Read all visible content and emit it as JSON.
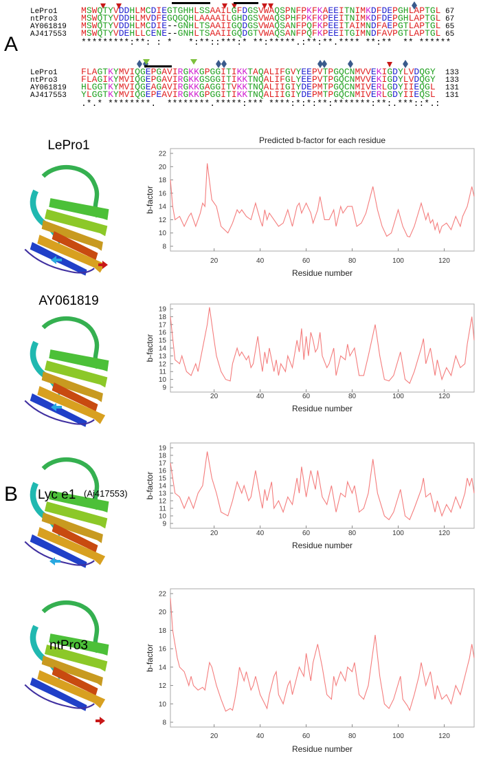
{
  "figure": {
    "panel_labels": [
      "A",
      "B"
    ]
  },
  "alignment": {
    "blocks": [
      {
        "rows": [
          {
            "name": "LePro1",
            "seq": "MSWQTYVDDHLMCDIEGTGHHLSSAAILGFDGSVWAQSPNFPKFKAEEITNIMKDFDEPGHLAPTGL",
            "end": 67
          },
          {
            "name": "ntPro3",
            "seq": "MSWQTYVDDHLMVDFEGQGQHLAAAAILGHDGSVWAQSPHFPKFKPEEITNIMKDFDEPGHLAPTGL",
            "end": 67
          },
          {
            "name": "AY061819",
            "seq": "MSWQTYVDDHLMCDIE--GNHLTSAAIIGQDGSVWAQSANFPQFKPEEITAIMNDFAEPGTLAPTGL",
            "end": 65
          },
          {
            "name": "AJ417553",
            "seq": "MSWQTYVDEHLLCENE--GNHLTSAAIIGQDGTVWAQSANFPQFKPEEITGIMNDFAVPGTLAPTGL",
            "end": 65
          }
        ],
        "consensus": "*********:**: : *   *:**::***:* **:*****.:**:**.**** **:**  ** ******"
      },
      {
        "rows": [
          {
            "name": "LePro1",
            "seq": "FLAGTKYMVIQGEPGAVIRGKKGPGGITIKKTAQALIFGVYEEPVTPGQCNMVVEKIGDYLVDQGY",
            "end": 133
          },
          {
            "name": "ntPro3",
            "seq": "FLAGIKYMVIQGEPGAVIRGKKGSGGITIKKTNQALIFGLYEEPVTPGQCNMVVEKIGDYLVDQGY",
            "end": 133
          },
          {
            "name": "AY061819",
            "seq": "HLGGTKYMVIQGEAGAVIRGKKGAGGITVKKTNQALIIGIYDEPMTPGQCNMIVERLGDYIIEQGL",
            "end": 131
          },
          {
            "name": "AJ417553",
            "seq": "YLGGTKYMVIQGEPEAVIRGKKGPGGITIKKTNQALIIGIYDEPMTPGQCNMIVERLGDYIIEQSL",
            "end": 131
          }
        ],
        "consensus": ".*.* ********.  ********.*****:*** ****:*:*:**:*******:**:.***::*.:"
      }
    ]
  },
  "structures": [
    {
      "label": "LePro1"
    },
    {
      "label": "AY061819"
    },
    {
      "label": "Lyc e1",
      "note": "(Aj417553)"
    },
    {
      "label": "ntPro3"
    }
  ],
  "chart_data": [
    {
      "type": "line",
      "title": "Predicted b-factor for each residue",
      "x_label": "Residue number",
      "y_label": "b-factor",
      "color": "#f47c7c",
      "xlim": [
        1,
        133
      ],
      "xticks": [
        20,
        40,
        60,
        80,
        100,
        120
      ],
      "ylim": [
        8,
        22
      ],
      "yticks": [
        8,
        10,
        12,
        14,
        16,
        18,
        20,
        22
      ],
      "x": [
        1,
        2,
        3,
        5,
        7,
        9,
        10,
        12,
        14,
        15,
        16,
        17,
        19,
        21,
        23,
        26,
        28,
        30,
        31,
        32,
        34,
        36,
        38,
        40,
        41,
        42,
        43,
        44,
        46,
        48,
        50,
        52,
        54,
        56,
        57,
        58,
        60,
        62,
        63,
        65,
        66,
        68,
        70,
        72,
        73,
        75,
        76,
        78,
        80,
        82,
        84,
        86,
        89,
        91,
        93,
        95,
        97,
        100,
        102,
        104,
        105,
        107,
        110,
        112,
        113,
        114,
        115,
        116,
        117,
        118,
        119,
        121,
        123,
        125,
        127,
        128,
        130,
        132,
        133
      ],
      "values": [
        18,
        14,
        12,
        12.5,
        11,
        12.5,
        13,
        11,
        13,
        14.5,
        14,
        20.5,
        15,
        14,
        11,
        10,
        11.5,
        13.5,
        13,
        13.5,
        12.5,
        12,
        14.5,
        12,
        11,
        13.5,
        12,
        13,
        12,
        11,
        11.5,
        13.5,
        11,
        14,
        14.5,
        13,
        14.5,
        13,
        11.5,
        13.5,
        15.5,
        12,
        12,
        13.5,
        11,
        14,
        13,
        14,
        14,
        11,
        11.5,
        13,
        17,
        13.5,
        11,
        9.5,
        10,
        13.5,
        11,
        9.5,
        9.4,
        11,
        14.5,
        12,
        13,
        11.5,
        12,
        10.5,
        11.5,
        10,
        11,
        11.5,
        10.5,
        12.5,
        11,
        12.5,
        14,
        17,
        15.5
      ]
    },
    {
      "type": "line",
      "x_label": "Residue number",
      "y_label": "b-factor",
      "color": "#f47c7c",
      "xlim": [
        1,
        133
      ],
      "xticks": [
        20,
        40,
        60,
        80,
        100,
        120
      ],
      "ylim": [
        9,
        19
      ],
      "yticks": [
        9,
        10,
        11,
        12,
        13,
        14,
        15,
        16,
        17,
        18,
        19
      ],
      "x": [
        1,
        3,
        5,
        6,
        8,
        10,
        12,
        13,
        15,
        17,
        18,
        20,
        21,
        23,
        25,
        27,
        28,
        30,
        31,
        32,
        34,
        35,
        36,
        37,
        39,
        40,
        41,
        42,
        43,
        44,
        46,
        47,
        48,
        49,
        51,
        52,
        54,
        56,
        57,
        58,
        59,
        60,
        61,
        62,
        63,
        64,
        65,
        66,
        67,
        69,
        70,
        72,
        73,
        75,
        77,
        78,
        79,
        81,
        83,
        85,
        87,
        90,
        92,
        94,
        96,
        98,
        101,
        103,
        105,
        107,
        110,
        111,
        112,
        114,
        116,
        117,
        119,
        121,
        123,
        125,
        127,
        129,
        130,
        132,
        133
      ],
      "values": [
        18,
        12.5,
        12,
        13,
        11,
        10.5,
        12,
        11,
        14,
        17,
        19.2,
        15,
        13,
        11,
        10,
        9.8,
        12,
        14,
        13,
        13.5,
        12.5,
        13,
        11.5,
        12,
        15.5,
        13,
        11,
        13.5,
        12,
        14,
        11,
        12.5,
        10.5,
        12,
        11,
        13,
        11.5,
        15,
        13.5,
        16.5,
        12.5,
        15.5,
        13,
        16,
        15,
        13.5,
        14,
        16,
        13,
        11.5,
        12,
        14,
        10.5,
        13,
        12.5,
        14.5,
        13,
        14,
        10.5,
        10.5,
        13,
        17,
        13,
        10,
        9.8,
        10.5,
        13.5,
        10,
        9.5,
        11,
        14,
        15.2,
        12,
        14,
        10.5,
        12.5,
        10,
        11.5,
        10.5,
        13,
        11.5,
        12,
        14.5,
        18,
        15
      ]
    },
    {
      "type": "line",
      "x_label": "Residue number",
      "y_label": "b-factor",
      "color": "#f47c7c",
      "xlim": [
        1,
        133
      ],
      "xticks": [
        20,
        40,
        60,
        80,
        100,
        120
      ],
      "ylim": [
        9,
        19
      ],
      "yticks": [
        9,
        10,
        11,
        12,
        13,
        14,
        15,
        16,
        17,
        18,
        19
      ],
      "x": [
        1,
        3,
        5,
        7,
        9,
        11,
        13,
        15,
        17,
        19,
        21,
        23,
        26,
        28,
        30,
        32,
        33,
        35,
        36,
        38,
        40,
        41,
        42,
        43,
        45,
        46,
        48,
        50,
        52,
        54,
        56,
        57,
        58,
        60,
        62,
        64,
        65,
        67,
        69,
        71,
        73,
        75,
        77,
        78,
        80,
        81,
        83,
        85,
        87,
        89,
        91,
        94,
        96,
        98,
        101,
        103,
        105,
        107,
        110,
        111,
        112,
        114,
        116,
        117,
        119,
        121,
        123,
        125,
        127,
        129,
        130,
        131,
        132,
        133
      ],
      "values": [
        17,
        13,
        12.5,
        11,
        12.5,
        11,
        13,
        14,
        18.5,
        15,
        13,
        10.5,
        10,
        12,
        14.5,
        13,
        14,
        12,
        12.5,
        16,
        12.5,
        11,
        13.5,
        12,
        14.5,
        11,
        12,
        10.5,
        12.5,
        11.5,
        15,
        13,
        16.5,
        12.5,
        16,
        13.5,
        16,
        12.5,
        11.5,
        14,
        10.5,
        13,
        12.5,
        14.5,
        13,
        14,
        10.5,
        11,
        13,
        17.5,
        13,
        10,
        9.5,
        10.5,
        13.5,
        10,
        9.5,
        11,
        13.5,
        15,
        12.5,
        13,
        10.5,
        12,
        10,
        11.5,
        10.5,
        12.5,
        11,
        13,
        15,
        14,
        15,
        13
      ]
    },
    {
      "type": "line",
      "x_label": "Residue number",
      "y_label": "b-factor",
      "color": "#f47c7c",
      "xlim": [
        1,
        133
      ],
      "xticks": [
        20,
        40,
        60,
        80,
        100,
        120
      ],
      "ylim": [
        8,
        22
      ],
      "yticks": [
        8,
        10,
        12,
        14,
        16,
        18,
        20,
        22
      ],
      "x": [
        1,
        2,
        4,
        5,
        7,
        9,
        10,
        11,
        13,
        15,
        16,
        18,
        19,
        21,
        23,
        25,
        27,
        28,
        29,
        30,
        31,
        33,
        34,
        36,
        37,
        38,
        40,
        42,
        43,
        44,
        46,
        47,
        48,
        50,
        52,
        53,
        54,
        56,
        57,
        59,
        60,
        61,
        62,
        63,
        65,
        67,
        69,
        71,
        72,
        73,
        75,
        77,
        78,
        80,
        81,
        83,
        85,
        87,
        90,
        92,
        94,
        96,
        98,
        101,
        102,
        104,
        105,
        107,
        109,
        110,
        112,
        114,
        116,
        117,
        119,
        121,
        123,
        125,
        127,
        129,
        131,
        132,
        133
      ],
      "values": [
        21.5,
        18,
        15,
        14,
        13.5,
        12,
        13,
        12,
        11.5,
        11.8,
        11.5,
        14.5,
        14,
        12,
        10.5,
        9.2,
        9.5,
        9.3,
        10.5,
        12,
        14,
        12.5,
        13.5,
        11.5,
        12,
        13,
        11,
        10,
        9.5,
        11,
        13,
        13.5,
        11,
        10,
        12,
        12.5,
        11,
        13,
        14,
        13,
        15.5,
        14,
        12.5,
        14.5,
        16.5,
        14,
        11,
        10.5,
        13,
        12,
        13.5,
        12.5,
        14,
        13.5,
        14.5,
        11,
        10.5,
        12,
        17.5,
        13,
        10,
        9.5,
        10.5,
        13,
        10.5,
        9.8,
        9.3,
        11,
        13,
        14.5,
        12,
        13.5,
        10.5,
        12,
        10.5,
        11,
        10,
        12,
        11,
        13,
        15,
        16.5,
        15
      ]
    }
  ]
}
